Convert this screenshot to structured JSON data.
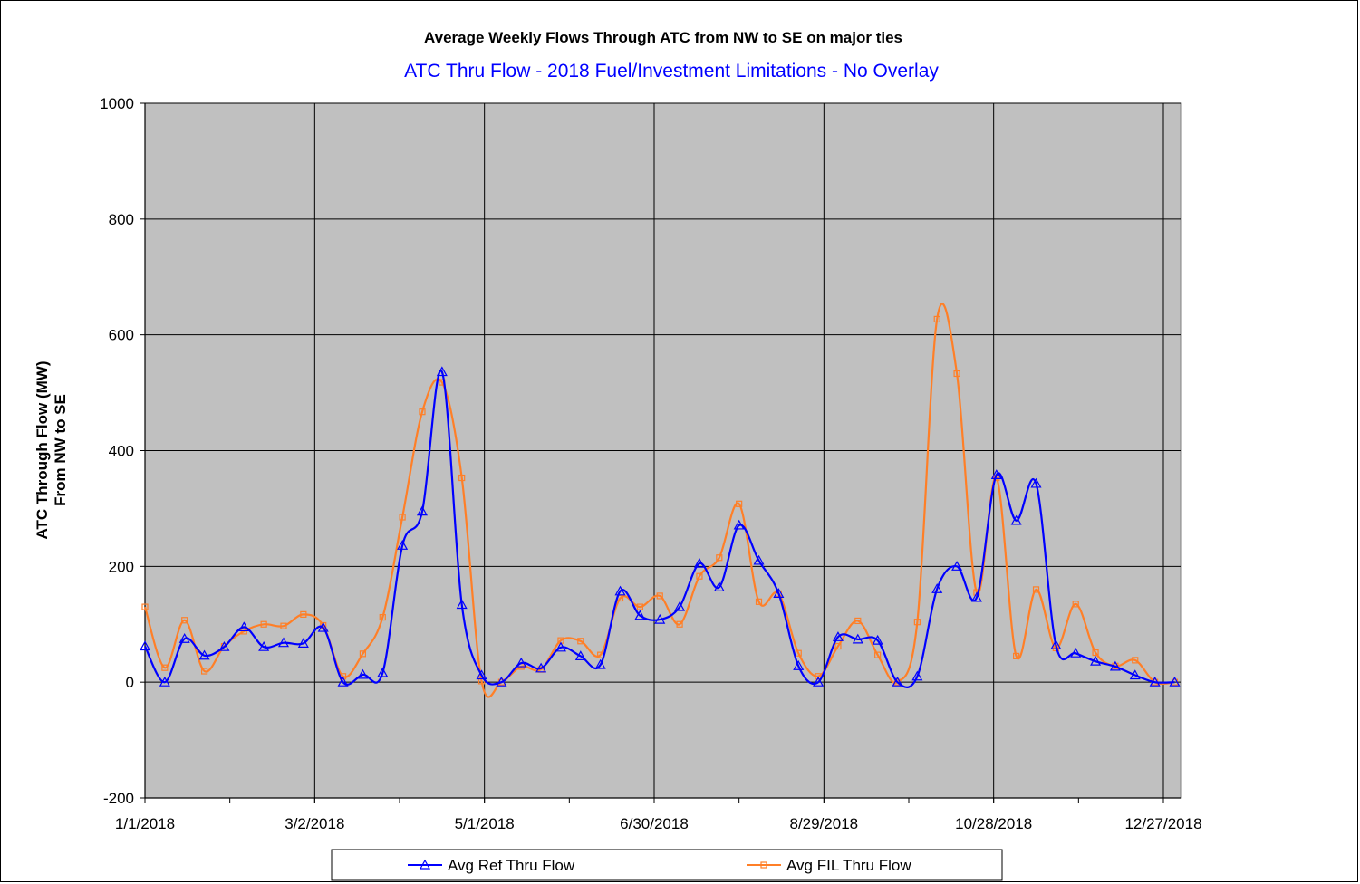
{
  "chart_data": {
    "type": "line",
    "title": "Average Weekly Flows Through ATC from NW to SE on major ties",
    "subtitle": "ATC Thru Flow - 2018 Fuel/Investment Limitations - No Overlay",
    "ylabel_line1": "ATC Through Flow (MW)",
    "ylabel_line2": "From NW to SE",
    "xlabel": "",
    "ylim": [
      -200,
      1000
    ],
    "yticks": [
      "-200",
      "0",
      "200",
      "400",
      "600",
      "800",
      "1000"
    ],
    "xticks": [
      "1/1/2018",
      "3/2/2018",
      "5/1/2018",
      "6/30/2018",
      "8/29/2018",
      "10/28/2018",
      "12/27/2018"
    ],
    "grid": true,
    "plot_background": "#c0c0c0",
    "legend_position": "bottom",
    "x": [
      "1/1/2018",
      "1/8/2018",
      "1/15/2018",
      "1/22/2018",
      "1/29/2018",
      "2/5/2018",
      "2/12/2018",
      "2/19/2018",
      "2/26/2018",
      "3/5/2018",
      "3/12/2018",
      "3/19/2018",
      "3/26/2018",
      "4/2/2018",
      "4/9/2018",
      "4/16/2018",
      "4/23/2018",
      "4/30/2018",
      "5/7/2018",
      "5/14/2018",
      "5/21/2018",
      "5/28/2018",
      "6/4/2018",
      "6/11/2018",
      "6/18/2018",
      "6/25/2018",
      "7/2/2018",
      "7/9/2018",
      "7/16/2018",
      "7/23/2018",
      "7/30/2018",
      "8/6/2018",
      "8/13/2018",
      "8/20/2018",
      "8/27/2018",
      "9/3/2018",
      "9/10/2018",
      "9/17/2018",
      "9/24/2018",
      "10/1/2018",
      "10/8/2018",
      "10/15/2018",
      "10/22/2018",
      "10/29/2018",
      "11/5/2018",
      "11/12/2018",
      "11/19/2018",
      "11/26/2018",
      "12/3/2018",
      "12/10/2018",
      "12/17/2018",
      "12/24/2018",
      "12/31/2018"
    ],
    "series": [
      {
        "name": "Avg Ref Thru Flow",
        "color": "#0000ff",
        "marker": "triangle",
        "values": [
          62,
          0,
          75,
          46,
          61,
          95,
          61,
          68,
          67,
          94,
          0,
          13,
          16,
          236,
          295,
          536,
          134,
          12,
          0,
          33,
          24,
          60,
          45,
          30,
          157,
          115,
          108,
          130,
          205,
          164,
          271,
          210,
          153,
          28,
          0,
          78,
          74,
          72,
          0,
          10,
          161,
          200,
          146,
          358,
          279,
          343,
          64,
          50,
          36,
          27,
          12,
          0,
          0
        ]
      },
      {
        "name": "Avg FIL Thru Flow",
        "color": "#ff7f27",
        "marker": "square",
        "values": [
          130,
          25,
          107,
          19,
          62,
          88,
          100,
          97,
          117,
          98,
          10,
          49,
          112,
          285,
          467,
          518,
          353,
          2,
          0,
          27,
          22,
          72,
          71,
          47,
          145,
          130,
          149,
          100,
          183,
          215,
          308,
          139,
          153,
          50,
          10,
          62,
          106,
          47,
          0,
          104,
          627,
          533,
          155,
          353,
          45,
          160,
          59,
          135,
          51,
          28,
          38,
          0,
          0
        ]
      }
    ]
  }
}
